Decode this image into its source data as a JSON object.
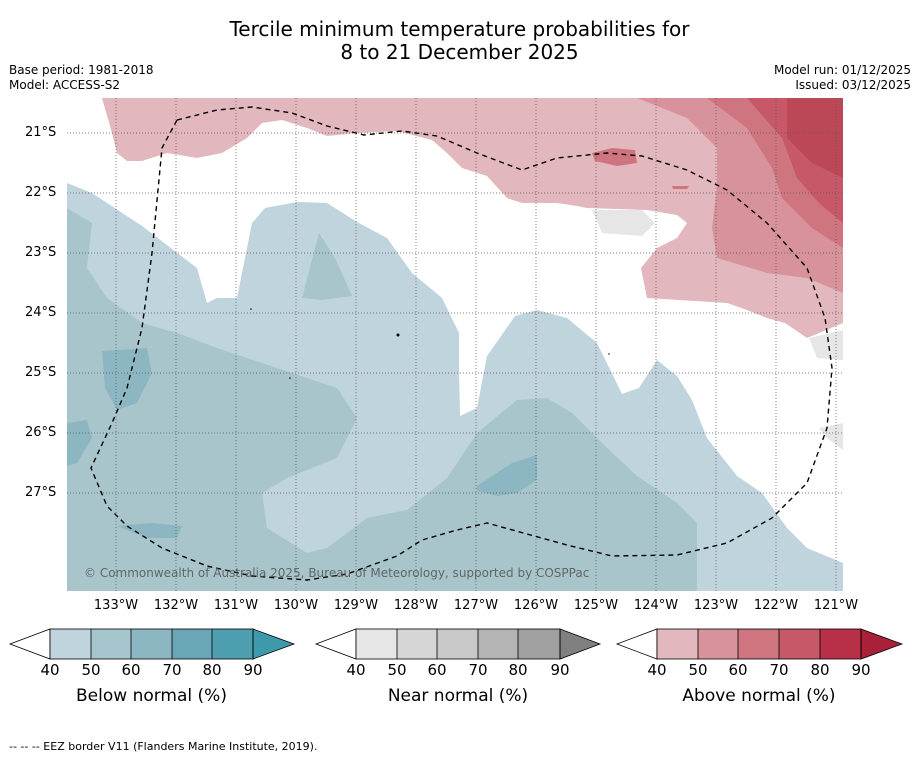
{
  "title_line1": "Tercile minimum temperature probabilities for",
  "title_line2": "8 to 21 December 2025",
  "meta": {
    "base_period": "Base period: 1981-2018",
    "model": "Model: ACCESS-S2",
    "model_run": "Model run: 01/12/2025",
    "issued": "Issued: 03/12/2025"
  },
  "axes": {
    "lat_labels": [
      "21°S",
      "22°S",
      "23°S",
      "24°S",
      "25°S",
      "26°S",
      "27°S"
    ],
    "lon_labels": [
      "133°W",
      "132°W",
      "131°W",
      "130°W",
      "129°W",
      "128°W",
      "127°W",
      "126°W",
      "125°W",
      "124°W",
      "123°W",
      "122°W",
      "121°W"
    ]
  },
  "copyright": "© Commonwealth of Australia 2025, Bureau of Meteorology, supported by COSPPac",
  "colorbars": [
    {
      "title": "Below normal (%)",
      "ticks": [
        "40",
        "50",
        "60",
        "70",
        "80",
        "90"
      ],
      "colors": [
        "#bfd4dc",
        "#a6c6cd",
        "#8cb7c2",
        "#6aa6b5",
        "#4d9fb0",
        "#3d9aac"
      ]
    },
    {
      "title": "Near normal (%)",
      "ticks": [
        "40",
        "50",
        "60",
        "70",
        "80",
        "90"
      ],
      "colors": [
        "#e6e6e6",
        "#d6d6d6",
        "#c8c8c8",
        "#b4b4b4",
        "#a0a0a0",
        "#808080"
      ]
    },
    {
      "title": "Above normal (%)",
      "ticks": [
        "40",
        "50",
        "60",
        "70",
        "80",
        "90"
      ],
      "colors": [
        "#e2b8be",
        "#d8929b",
        "#cf7580",
        "#c65867",
        "#b83048",
        "#a8203a"
      ]
    }
  ],
  "eez_note": "-- -- -- EEZ border V11 (Flanders Marine Institute, 2019)."
}
